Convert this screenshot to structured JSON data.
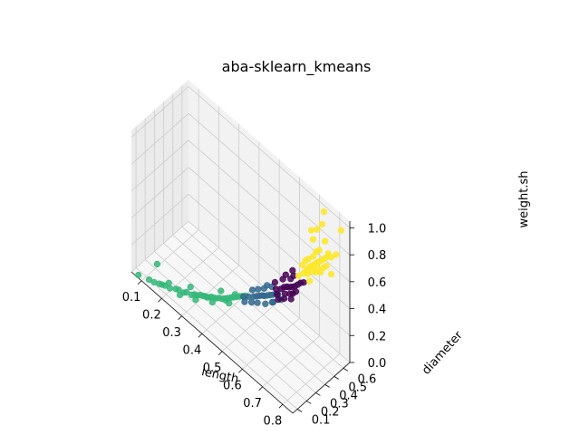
{
  "chart_data": {
    "type": "scatter",
    "projection": "3d",
    "title": "aba-sklearn_kmeans",
    "xlabel": "length",
    "ylabel": "diameter",
    "zlabel": "weight.sh",
    "xlim": [
      0.05,
      0.85
    ],
    "ylim": [
      0.05,
      0.67
    ],
    "zlim": [
      0.0,
      1.05
    ],
    "xticks": [
      "0.1",
      "0.2",
      "0.3",
      "0.4",
      "0.5",
      "0.6",
      "0.7",
      "0.8"
    ],
    "yticks": [
      "0.1",
      "0.2",
      "0.3",
      "0.4",
      "0.5",
      "0.6"
    ],
    "zticks": [
      "0.0",
      "0.2",
      "0.4",
      "0.6",
      "0.8",
      "1.0"
    ],
    "grid": true,
    "legend": "none",
    "clusters": [
      {
        "color": "#35b779",
        "points": [
          {
            "x": 0.08,
            "y": 0.06,
            "z": 0.01
          },
          {
            "x": 0.12,
            "y": 0.09,
            "z": 0.01
          },
          {
            "x": 0.14,
            "y": 0.1,
            "z": 0.01
          },
          {
            "x": 0.16,
            "y": 0.11,
            "z": 0.02
          },
          {
            "x": 0.18,
            "y": 0.13,
            "z": 0.02
          },
          {
            "x": 0.2,
            "y": 0.14,
            "z": 0.02
          },
          {
            "x": 0.22,
            "y": 0.16,
            "z": 0.03
          },
          {
            "x": 0.23,
            "y": 0.17,
            "z": 0.03
          },
          {
            "x": 0.25,
            "y": 0.18,
            "z": 0.03
          },
          {
            "x": 0.26,
            "y": 0.19,
            "z": 0.04
          },
          {
            "x": 0.28,
            "y": 0.2,
            "z": 0.04
          },
          {
            "x": 0.29,
            "y": 0.21,
            "z": 0.05
          },
          {
            "x": 0.3,
            "y": 0.22,
            "z": 0.05
          },
          {
            "x": 0.31,
            "y": 0.23,
            "z": 0.06
          },
          {
            "x": 0.32,
            "y": 0.24,
            "z": 0.06
          },
          {
            "x": 0.33,
            "y": 0.24,
            "z": 0.07
          },
          {
            "x": 0.34,
            "y": 0.25,
            "z": 0.07
          },
          {
            "x": 0.35,
            "y": 0.26,
            "z": 0.08
          },
          {
            "x": 0.36,
            "y": 0.27,
            "z": 0.08
          },
          {
            "x": 0.37,
            "y": 0.27,
            "z": 0.09
          },
          {
            "x": 0.38,
            "y": 0.28,
            "z": 0.1
          },
          {
            "x": 0.39,
            "y": 0.29,
            "z": 0.1
          },
          {
            "x": 0.4,
            "y": 0.3,
            "z": 0.11
          },
          {
            "x": 0.41,
            "y": 0.31,
            "z": 0.12
          },
          {
            "x": 0.42,
            "y": 0.32,
            "z": 0.13
          },
          {
            "x": 0.43,
            "y": 0.33,
            "z": 0.14
          },
          {
            "x": 0.44,
            "y": 0.34,
            "z": 0.15
          },
          {
            "x": 0.45,
            "y": 0.35,
            "z": 0.16
          },
          {
            "x": 0.46,
            "y": 0.36,
            "z": 0.17
          },
          {
            "x": 0.47,
            "y": 0.37,
            "z": 0.18
          },
          {
            "x": 0.1,
            "y": 0.22,
            "z": 0.02
          },
          {
            "x": 0.17,
            "y": 0.12,
            "z": 0.02
          },
          {
            "x": 0.27,
            "y": 0.21,
            "z": 0.08
          },
          {
            "x": 0.36,
            "y": 0.25,
            "z": 0.06
          },
          {
            "x": 0.4,
            "y": 0.31,
            "z": 0.09
          },
          {
            "x": 0.44,
            "y": 0.32,
            "z": 0.18
          },
          {
            "x": 0.33,
            "y": 0.26,
            "z": 0.05
          },
          {
            "x": 0.24,
            "y": 0.16,
            "z": 0.01
          },
          {
            "x": 0.19,
            "y": 0.15,
            "z": 0.04
          },
          {
            "x": 0.3,
            "y": 0.2,
            "z": 0.03
          },
          {
            "x": 0.38,
            "y": 0.3,
            "z": 0.14
          },
          {
            "x": 0.42,
            "y": 0.3,
            "z": 0.1
          }
        ]
      },
      {
        "color": "#31688e",
        "points": [
          {
            "x": 0.46,
            "y": 0.37,
            "z": 0.16
          },
          {
            "x": 0.48,
            "y": 0.38,
            "z": 0.18
          },
          {
            "x": 0.5,
            "y": 0.39,
            "z": 0.2
          },
          {
            "x": 0.51,
            "y": 0.4,
            "z": 0.21
          },
          {
            "x": 0.52,
            "y": 0.41,
            "z": 0.22
          },
          {
            "x": 0.53,
            "y": 0.42,
            "z": 0.23
          },
          {
            "x": 0.54,
            "y": 0.42,
            "z": 0.24
          },
          {
            "x": 0.55,
            "y": 0.43,
            "z": 0.25
          },
          {
            "x": 0.56,
            "y": 0.44,
            "z": 0.26
          },
          {
            "x": 0.57,
            "y": 0.45,
            "z": 0.27
          },
          {
            "x": 0.58,
            "y": 0.46,
            "z": 0.28
          },
          {
            "x": 0.59,
            "y": 0.46,
            "z": 0.29
          },
          {
            "x": 0.52,
            "y": 0.39,
            "z": 0.18
          },
          {
            "x": 0.55,
            "y": 0.41,
            "z": 0.2
          },
          {
            "x": 0.57,
            "y": 0.44,
            "z": 0.22
          },
          {
            "x": 0.49,
            "y": 0.4,
            "z": 0.23
          },
          {
            "x": 0.53,
            "y": 0.44,
            "z": 0.27
          },
          {
            "x": 0.56,
            "y": 0.46,
            "z": 0.31
          },
          {
            "x": 0.6,
            "y": 0.47,
            "z": 0.26
          },
          {
            "x": 0.58,
            "y": 0.43,
            "z": 0.24
          },
          {
            "x": 0.5,
            "y": 0.37,
            "z": 0.17
          },
          {
            "x": 0.54,
            "y": 0.45,
            "z": 0.3
          },
          {
            "x": 0.51,
            "y": 0.42,
            "z": 0.25
          },
          {
            "x": 0.47,
            "y": 0.36,
            "z": 0.14
          }
        ]
      },
      {
        "color": "#440154",
        "points": [
          {
            "x": 0.58,
            "y": 0.46,
            "z": 0.32
          },
          {
            "x": 0.6,
            "y": 0.47,
            "z": 0.34
          },
          {
            "x": 0.61,
            "y": 0.48,
            "z": 0.36
          },
          {
            "x": 0.62,
            "y": 0.49,
            "z": 0.37
          },
          {
            "x": 0.63,
            "y": 0.49,
            "z": 0.38
          },
          {
            "x": 0.64,
            "y": 0.5,
            "z": 0.39
          },
          {
            "x": 0.65,
            "y": 0.51,
            "z": 0.4
          },
          {
            "x": 0.62,
            "y": 0.47,
            "z": 0.33
          },
          {
            "x": 0.64,
            "y": 0.48,
            "z": 0.35
          },
          {
            "x": 0.66,
            "y": 0.52,
            "z": 0.42
          },
          {
            "x": 0.6,
            "y": 0.49,
            "z": 0.4
          },
          {
            "x": 0.63,
            "y": 0.51,
            "z": 0.43
          },
          {
            "x": 0.65,
            "y": 0.49,
            "z": 0.36
          },
          {
            "x": 0.59,
            "y": 0.45,
            "z": 0.3
          },
          {
            "x": 0.67,
            "y": 0.53,
            "z": 0.44
          },
          {
            "x": 0.61,
            "y": 0.5,
            "z": 0.44
          },
          {
            "x": 0.64,
            "y": 0.52,
            "z": 0.46
          },
          {
            "x": 0.66,
            "y": 0.5,
            "z": 0.38
          },
          {
            "x": 0.62,
            "y": 0.46,
            "z": 0.3
          },
          {
            "x": 0.57,
            "y": 0.47,
            "z": 0.35
          },
          {
            "x": 0.63,
            "y": 0.53,
            "z": 0.48
          },
          {
            "x": 0.68,
            "y": 0.54,
            "z": 0.45
          },
          {
            "x": 0.6,
            "y": 0.44,
            "z": 0.28
          },
          {
            "x": 0.65,
            "y": 0.47,
            "z": 0.33
          }
        ]
      },
      {
        "color": "#fde725",
        "points": [
          {
            "x": 0.66,
            "y": 0.53,
            "z": 0.48
          },
          {
            "x": 0.68,
            "y": 0.54,
            "z": 0.52
          },
          {
            "x": 0.69,
            "y": 0.55,
            "z": 0.55
          },
          {
            "x": 0.7,
            "y": 0.56,
            "z": 0.58
          },
          {
            "x": 0.71,
            "y": 0.56,
            "z": 0.6
          },
          {
            "x": 0.72,
            "y": 0.57,
            "z": 0.62
          },
          {
            "x": 0.73,
            "y": 0.58,
            "z": 0.64
          },
          {
            "x": 0.74,
            "y": 0.58,
            "z": 0.66
          },
          {
            "x": 0.7,
            "y": 0.54,
            "z": 0.54
          },
          {
            "x": 0.72,
            "y": 0.55,
            "z": 0.58
          },
          {
            "x": 0.74,
            "y": 0.56,
            "z": 0.62
          },
          {
            "x": 0.75,
            "y": 0.59,
            "z": 0.68
          },
          {
            "x": 0.76,
            "y": 0.6,
            "z": 0.7
          },
          {
            "x": 0.71,
            "y": 0.58,
            "z": 0.66
          },
          {
            "x": 0.73,
            "y": 0.6,
            "z": 0.72
          },
          {
            "x": 0.69,
            "y": 0.57,
            "z": 0.62
          },
          {
            "x": 0.77,
            "y": 0.61,
            "z": 0.74
          },
          {
            "x": 0.75,
            "y": 0.62,
            "z": 0.8
          },
          {
            "x": 0.72,
            "y": 0.6,
            "z": 0.86
          },
          {
            "x": 0.74,
            "y": 0.61,
            "z": 0.92
          },
          {
            "x": 0.7,
            "y": 0.58,
            "z": 0.84
          },
          {
            "x": 0.76,
            "y": 0.58,
            "z": 0.64
          },
          {
            "x": 0.78,
            "y": 0.62,
            "z": 0.72
          },
          {
            "x": 0.8,
            "y": 0.63,
            "z": 0.76
          },
          {
            "x": 0.82,
            "y": 0.64,
            "z": 0.96
          },
          {
            "x": 0.67,
            "y": 0.55,
            "z": 0.56
          },
          {
            "x": 0.73,
            "y": 0.56,
            "z": 0.58
          },
          {
            "x": 0.71,
            "y": 0.54,
            "z": 0.5
          },
          {
            "x": 0.77,
            "y": 0.59,
            "z": 0.66
          },
          {
            "x": 0.74,
            "y": 0.63,
            "z": 1.0
          },
          {
            "x": 0.79,
            "y": 0.6,
            "z": 0.62
          },
          {
            "x": 0.68,
            "y": 0.56,
            "z": 0.6
          },
          {
            "x": 0.75,
            "y": 0.57,
            "z": 0.6
          },
          {
            "x": 0.72,
            "y": 0.59,
            "z": 0.7
          },
          {
            "x": 0.7,
            "y": 0.6,
            "z": 0.76
          }
        ]
      }
    ]
  }
}
